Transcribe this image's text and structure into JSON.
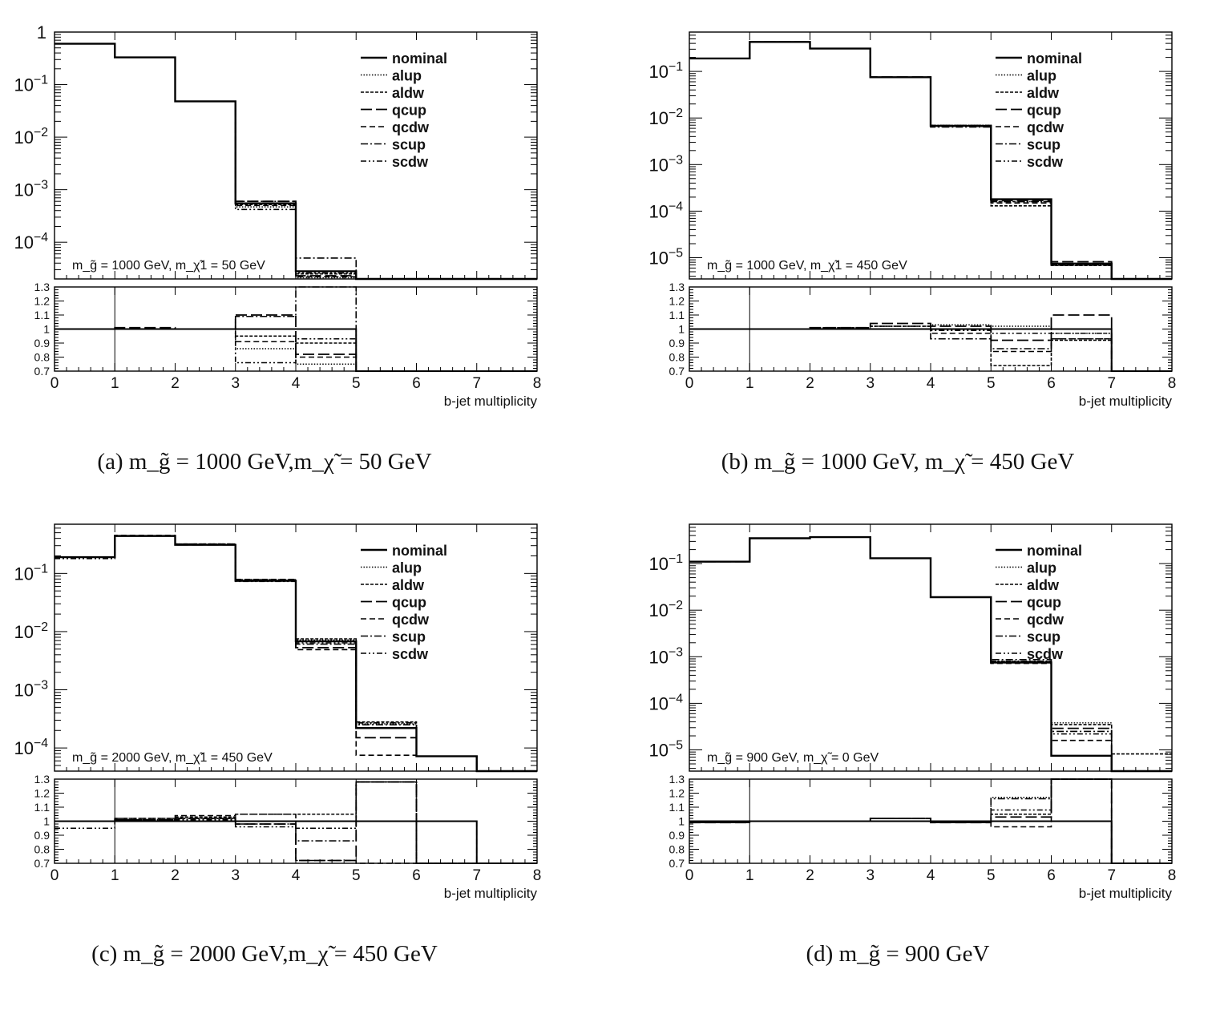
{
  "x_axis_title": "b-jet multiplicity",
  "legend_entries": [
    "nominal",
    "alup",
    "aldw",
    "qcup",
    "qcdw",
    "scup",
    "scdw"
  ],
  "ratio_ticks": [
    "1.3",
    "1.2",
    "1.1",
    "1",
    "0.9",
    "0.8",
    "0.7"
  ],
  "x_ticks": [
    "0",
    "1",
    "2",
    "3",
    "4",
    "5",
    "6",
    "7",
    "8"
  ],
  "captions": [
    {
      "label": "(a)",
      "text": "m_g̃ = 1000 GeV,m_χ̃ = 50 GeV"
    },
    {
      "label": "(b)",
      "text": "m_g̃ = 1000 GeV, m_χ̃ = 450 GeV"
    },
    {
      "label": "(c)",
      "text": "m_g̃ = 2000 GeV,m_χ̃ = 450 GeV"
    },
    {
      "label": "(d)",
      "text": "m_g̃ = 900 GeV"
    }
  ],
  "chart_data": [
    {
      "type": "histogram",
      "annotation": "m_g̃ = 1000 GeV, m_χ̃1 = 50 GeV",
      "xlabel": "b-jet multiplicity",
      "xlim": [
        0,
        8
      ],
      "ylim": [
        2e-05,
        1
      ],
      "yscale": "log",
      "y_ticks": [
        "1",
        "10^-1",
        "10^-2",
        "10^-3",
        "10^-4"
      ],
      "ratio_ylim": [
        0.7,
        1.3
      ],
      "legend_position": "top-right",
      "x_bins": [
        0,
        1,
        2,
        3,
        4,
        5,
        6,
        7,
        8
      ],
      "series": [
        {
          "name": "nominal",
          "values": [
            0.6,
            0.33,
            0.048,
            0.00055,
            2.8e-05,
            0,
            0,
            0
          ]
        },
        {
          "name": "alup",
          "values": [
            0.6,
            0.33,
            0.048,
            0.00047,
            2.1e-05,
            0,
            0,
            0
          ]
        },
        {
          "name": "aldw",
          "values": [
            0.6,
            0.33,
            0.048,
            0.00052,
            2.5e-05,
            0,
            0,
            0
          ]
        },
        {
          "name": "qcup",
          "values": [
            0.6,
            0.33,
            0.048,
            0.0006,
            2.3e-05,
            0,
            0,
            0
          ]
        },
        {
          "name": "qcdw",
          "values": [
            0.6,
            0.33,
            0.048,
            0.0005,
            2.2e-05,
            0,
            0,
            0
          ]
        },
        {
          "name": "scup",
          "values": [
            0.6,
            0.33,
            0.048,
            0.0006,
            5e-05,
            0,
            0,
            0
          ]
        },
        {
          "name": "scdw",
          "values": [
            0.6,
            0.33,
            0.048,
            0.00042,
            2.6e-05,
            0,
            0,
            0
          ]
        }
      ],
      "ratios": [
        {
          "name": "alup",
          "values": [
            1,
            1,
            1,
            0.86,
            0.75,
            0,
            0,
            0
          ]
        },
        {
          "name": "aldw",
          "values": [
            1,
            1,
            1,
            0.95,
            0.9,
            0,
            0,
            0
          ]
        },
        {
          "name": "qcup",
          "values": [
            1,
            1.01,
            1,
            1.1,
            0.82,
            0,
            0,
            0
          ]
        },
        {
          "name": "qcdw",
          "values": [
            1,
            1,
            1,
            0.91,
            0.8,
            0,
            0,
            0
          ]
        },
        {
          "name": "scup",
          "values": [
            1,
            1,
            1,
            1.09,
            1.8,
            0,
            0,
            0
          ]
        },
        {
          "name": "scdw",
          "values": [
            1,
            1,
            1,
            0.76,
            0.93,
            0,
            0,
            0
          ]
        }
      ]
    },
    {
      "type": "histogram",
      "annotation": "m_g̃ = 1000 GeV, m_χ̃1 = 450 GeV",
      "xlabel": "b-jet multiplicity",
      "xlim": [
        0,
        8
      ],
      "ylim": [
        3.5e-06,
        0.7
      ],
      "yscale": "log",
      "y_ticks": [
        "10^-1",
        "10^-2",
        "10^-3",
        "10^-4",
        "10^-5"
      ],
      "ratio_ylim": [
        0.7,
        1.3
      ],
      "legend_position": "top-right",
      "x_bins": [
        0,
        1,
        2,
        3,
        4,
        5,
        6,
        7,
        8
      ],
      "series": [
        {
          "name": "nominal",
          "values": [
            0.19,
            0.43,
            0.31,
            0.075,
            0.0068,
            0.00018,
            7.5e-06,
            0
          ]
        },
        {
          "name": "alup",
          "values": [
            0.19,
            0.43,
            0.31,
            0.075,
            0.007,
            0.00016,
            7e-06,
            0
          ]
        },
        {
          "name": "aldw",
          "values": [
            0.19,
            0.43,
            0.31,
            0.075,
            0.0068,
            0.00013,
            6.8e-06,
            0
          ]
        },
        {
          "name": "qcup",
          "values": [
            0.19,
            0.43,
            0.31,
            0.076,
            0.0069,
            0.00017,
            8.2e-06,
            0
          ]
        },
        {
          "name": "qcdw",
          "values": [
            0.19,
            0.43,
            0.31,
            0.075,
            0.0067,
            0.00015,
            7e-06,
            0
          ]
        },
        {
          "name": "scup",
          "values": [
            0.19,
            0.43,
            0.31,
            0.075,
            0.0064,
            0.00016,
            6.9e-06,
            0
          ]
        },
        {
          "name": "scdw",
          "values": [
            0.19,
            0.43,
            0.31,
            0.075,
            0.0066,
            0.00018,
            7.2e-06,
            0
          ]
        }
      ],
      "ratios": [
        {
          "name": "alup",
          "values": [
            1,
            1,
            1,
            1.02,
            1.03,
            1.02,
            0.97,
            0
          ]
        },
        {
          "name": "aldw",
          "values": [
            1,
            1,
            1.01,
            1.02,
            1.0,
            0.74,
            0.92,
            0
          ]
        },
        {
          "name": "qcup",
          "values": [
            1,
            1,
            1.01,
            1.04,
            1.02,
            0.92,
            1.1,
            0
          ]
        },
        {
          "name": "qcdw",
          "values": [
            1,
            1,
            1,
            1.0,
            0.97,
            0.84,
            0.93,
            0
          ]
        },
        {
          "name": "scup",
          "values": [
            1,
            1,
            1,
            1.0,
            0.93,
            0.86,
            0.93,
            0
          ]
        },
        {
          "name": "scdw",
          "values": [
            1,
            1,
            1,
            1.02,
            0.99,
            0.97,
            0.97,
            0
          ]
        }
      ]
    },
    {
      "type": "histogram",
      "annotation": "m_g̃ = 2000 GeV, m_χ̃1 = 450 GeV",
      "xlabel": "b-jet multiplicity",
      "xlim": [
        0,
        8
      ],
      "ylim": [
        4e-05,
        0.7
      ],
      "yscale": "log",
      "y_ticks": [
        "10^-1",
        "10^-2",
        "10^-3",
        "10^-4"
      ],
      "ratio_ylim": [
        0.7,
        1.3
      ],
      "legend_position": "top-right",
      "x_bins": [
        0,
        1,
        2,
        3,
        4,
        5,
        6,
        7,
        8
      ],
      "series": [
        {
          "name": "nominal",
          "values": [
            0.19,
            0.44,
            0.31,
            0.075,
            0.0068,
            0.00022,
            7.2e-05,
            0
          ]
        },
        {
          "name": "alup",
          "values": [
            0.19,
            0.44,
            0.32,
            0.076,
            0.0072,
            0.00026,
            7.2e-05,
            0
          ]
        },
        {
          "name": "aldw",
          "values": [
            0.19,
            0.44,
            0.32,
            0.078,
            0.0075,
            0.00028,
            7.2e-05,
            0
          ]
        },
        {
          "name": "qcup",
          "values": [
            0.19,
            0.44,
            0.31,
            0.074,
            0.0053,
            0.00015,
            7.2e-05,
            0
          ]
        },
        {
          "name": "qcdw",
          "values": [
            0.19,
            0.45,
            0.32,
            0.079,
            0.0049,
            7.5e-05,
            7.2e-05,
            0
          ]
        },
        {
          "name": "scup",
          "values": [
            0.19,
            0.44,
            0.31,
            0.074,
            0.0061,
            0.00025,
            7.2e-05,
            0
          ]
        },
        {
          "name": "scdw",
          "values": [
            0.18,
            0.44,
            0.31,
            0.073,
            0.0064,
            0.00027,
            7.2e-05,
            0
          ]
        }
      ],
      "ratios": [
        {
          "name": "alup",
          "values": [
            1,
            1.01,
            1.02,
            1.0,
            1.0,
            1.28,
            0,
            0
          ]
        },
        {
          "name": "aldw",
          "values": [
            1,
            1.02,
            1.03,
            1.05,
            1.05,
            1.28,
            0,
            0
          ]
        },
        {
          "name": "qcup",
          "values": [
            1,
            1.01,
            1.02,
            0.98,
            0.72,
            1.28,
            0,
            0
          ]
        },
        {
          "name": "qcdw",
          "values": [
            1,
            1.02,
            1.04,
            1.05,
            0.72,
            0.7,
            1.0,
            0
          ]
        },
        {
          "name": "scup",
          "values": [
            1,
            1.01,
            1.02,
            0.98,
            0.86,
            1.28,
            0,
            0
          ]
        },
        {
          "name": "scdw",
          "values": [
            0.95,
            1.01,
            1.01,
            0.96,
            0.95,
            1.28,
            0,
            0
          ]
        }
      ]
    },
    {
      "type": "histogram",
      "annotation": "m_g̃ = 900 GeV, m_χ̃ = 0 GeV",
      "xlabel": "b-jet multiplicity",
      "xlim": [
        0,
        8
      ],
      "ylim": [
        3.5e-06,
        0.7
      ],
      "yscale": "log",
      "y_ticks": [
        "10^-1",
        "10^-2",
        "10^-3",
        "10^-4",
        "10^-5"
      ],
      "ratio_ylim": [
        0.7,
        1.3
      ],
      "legend_position": "top-right",
      "x_bins": [
        0,
        1,
        2,
        3,
        4,
        5,
        6,
        7,
        8
      ],
      "series": [
        {
          "name": "nominal",
          "values": [
            0.11,
            0.35,
            0.37,
            0.13,
            0.019,
            0.00075,
            7.5e-06,
            0
          ]
        },
        {
          "name": "alup",
          "values": [
            0.11,
            0.35,
            0.37,
            0.13,
            0.019,
            0.0008,
            3.8e-05,
            0
          ]
        },
        {
          "name": "aldw",
          "values": [
            0.11,
            0.35,
            0.37,
            0.13,
            0.019,
            0.00078,
            3.5e-05,
            8.2e-06
          ]
        },
        {
          "name": "qcup",
          "values": [
            0.11,
            0.35,
            0.37,
            0.13,
            0.019,
            0.00076,
            2.9e-05,
            0
          ]
        },
        {
          "name": "qcdw",
          "values": [
            0.11,
            0.35,
            0.37,
            0.13,
            0.019,
            0.00072,
            1.6e-05,
            0
          ]
        },
        {
          "name": "scup",
          "values": [
            0.11,
            0.35,
            0.37,
            0.13,
            0.019,
            0.00087,
            2.5e-05,
            0
          ]
        },
        {
          "name": "scdw",
          "values": [
            0.11,
            0.35,
            0.37,
            0.13,
            0.019,
            0.0008,
            2.2e-05,
            0
          ]
        }
      ],
      "ratios": [
        {
          "name": "alup",
          "values": [
            0.99,
            1.0,
            1.0,
            1.02,
            0.99,
            1.17,
            1.3,
            0
          ]
        },
        {
          "name": "aldw",
          "values": [
            0.99,
            1.0,
            1.0,
            1.02,
            0.99,
            1.05,
            1.3,
            0
          ]
        },
        {
          "name": "qcup",
          "values": [
            0.99,
            1.0,
            1.0,
            1.02,
            0.99,
            1.03,
            1.3,
            0
          ]
        },
        {
          "name": "qcdw",
          "values": [
            0.99,
            1.0,
            1.0,
            1.02,
            0.99,
            0.96,
            1.3,
            0
          ]
        },
        {
          "name": "scup",
          "values": [
            0.99,
            1.0,
            1.0,
            1.02,
            0.99,
            1.16,
            1.3,
            0
          ]
        },
        {
          "name": "scdw",
          "values": [
            0.99,
            1.0,
            1.0,
            1.02,
            0.99,
            1.08,
            1.3,
            0
          ]
        }
      ]
    }
  ]
}
